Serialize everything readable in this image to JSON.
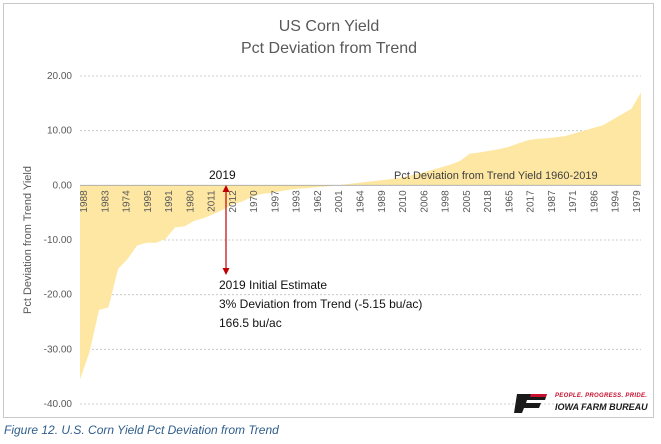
{
  "chart_data": {
    "type": "area",
    "title": "US Corn Yield",
    "subtitle": "Pct Deviation from Trend",
    "ylabel": "Pct Deviation from Trend Yield",
    "xlabel": "",
    "ylim": [
      -40,
      20
    ],
    "yticks": [
      "20.00",
      "10.00",
      "0.00",
      "-10.00",
      "-20.00",
      "-30.00",
      "-40.00"
    ],
    "ytick_values": [
      20,
      10,
      0,
      -10,
      -20,
      -30,
      -40
    ],
    "grid": true,
    "fill_color": "#fde7a2",
    "series_label": "Pct Deviation from Trend Yield 1960-2019",
    "categories_labeled": [
      "1988",
      "1983",
      "1974",
      "1995",
      "1991",
      "1980",
      "2011",
      "2012",
      "1970",
      "1997",
      "1993",
      "1962",
      "2001",
      "1964",
      "1989",
      "2010",
      "2006",
      "1998",
      "2005",
      "2018",
      "1965",
      "2017",
      "1987",
      "1971",
      "1986",
      "1994",
      "1979"
    ],
    "values": [
      -35.5,
      -30.5,
      -22.8,
      -22.3,
      -15.3,
      -13.5,
      -11.0,
      -10.5,
      -10.5,
      -9.8,
      -7.7,
      -7.5,
      -6.5,
      -6.0,
      -5.3,
      -4.5,
      -3.5,
      -3.0,
      -2.2,
      -1.6,
      -1.4,
      -1.1,
      -0.8,
      -0.6,
      -0.5,
      -0.3,
      -0.2,
      0.0,
      0.2,
      0.4,
      0.6,
      0.8,
      1.0,
      1.2,
      1.5,
      1.9,
      2.3,
      2.8,
      3.3,
      3.8,
      4.5,
      5.8,
      6.0,
      6.3,
      6.6,
      7.0,
      7.6,
      8.2,
      8.5,
      8.6,
      8.8,
      9.0,
      9.5,
      10.0,
      10.5,
      11.0,
      12.0,
      13.0,
      14.0,
      17.0
    ],
    "annotations": {
      "year_label": "2019",
      "estimate_line1": "2019  Initial Estimate",
      "estimate_line2": "3% Deviation from Trend (-5.15 bu/ac)",
      "estimate_line3": "166.5  bu/ac",
      "arrow_color": "#c00000"
    }
  },
  "caption": "Figure 12. U.S. Corn Yield Pct Deviation from Trend",
  "logo": {
    "tagline": "PEOPLE. PROGRESS. PRIDE.",
    "name": "IOWA FARM BUREAU",
    "brand_red": "#c8102e"
  }
}
